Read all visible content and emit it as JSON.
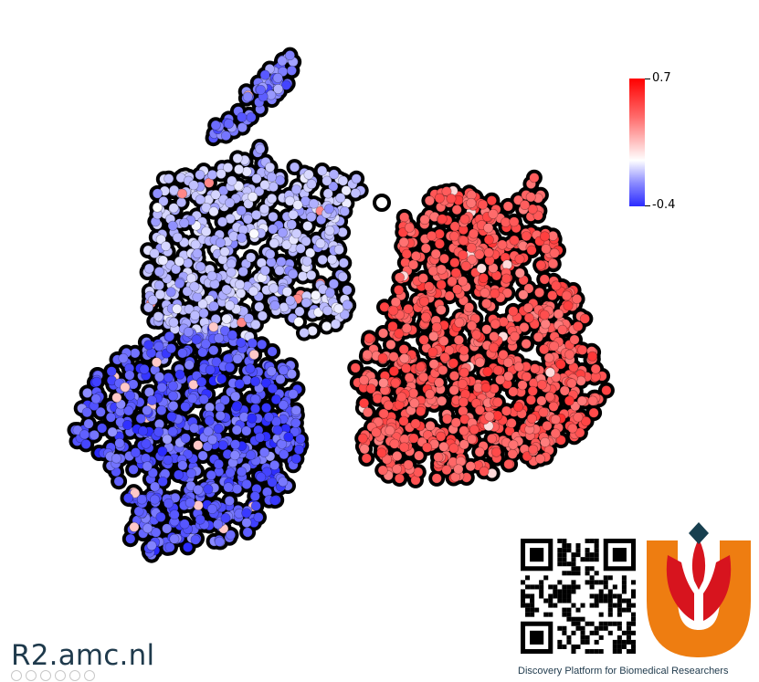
{
  "chart_data": {
    "type": "scatter",
    "title": "",
    "xlabel": "",
    "ylabel": "",
    "grid": false,
    "legend": "colorbar-top-right",
    "color_scale": {
      "min": -0.4,
      "max": 0.7,
      "min_label": "-0.4",
      "max_label": "0.7",
      "colors": [
        "#2b2bff",
        "#ffffff",
        "#ff0000"
      ]
    },
    "clusters": [
      {
        "id": "upper-left-arm",
        "mean_value": -0.25,
        "approx_points": 70
      },
      {
        "id": "upper-left-body",
        "mean_value": -0.12,
        "approx_points": 520
      },
      {
        "id": "lower-left-body",
        "mean_value": -0.3,
        "approx_points": 620
      },
      {
        "id": "right-body",
        "mean_value": 0.45,
        "approx_points": 900
      }
    ]
  },
  "branding": {
    "site": "R2.amc.nl",
    "tagline": "Discovery Platform for Biomedical Researchers",
    "logo_colors": {
      "orange": "#ee7d11",
      "red": "#d7141e",
      "teal": "#173f4f"
    },
    "social_icons": [
      "facebook-icon",
      "twitter-icon",
      "pinterest-icon",
      "linkedin-icon",
      "mail-icon",
      "link-icon"
    ]
  }
}
